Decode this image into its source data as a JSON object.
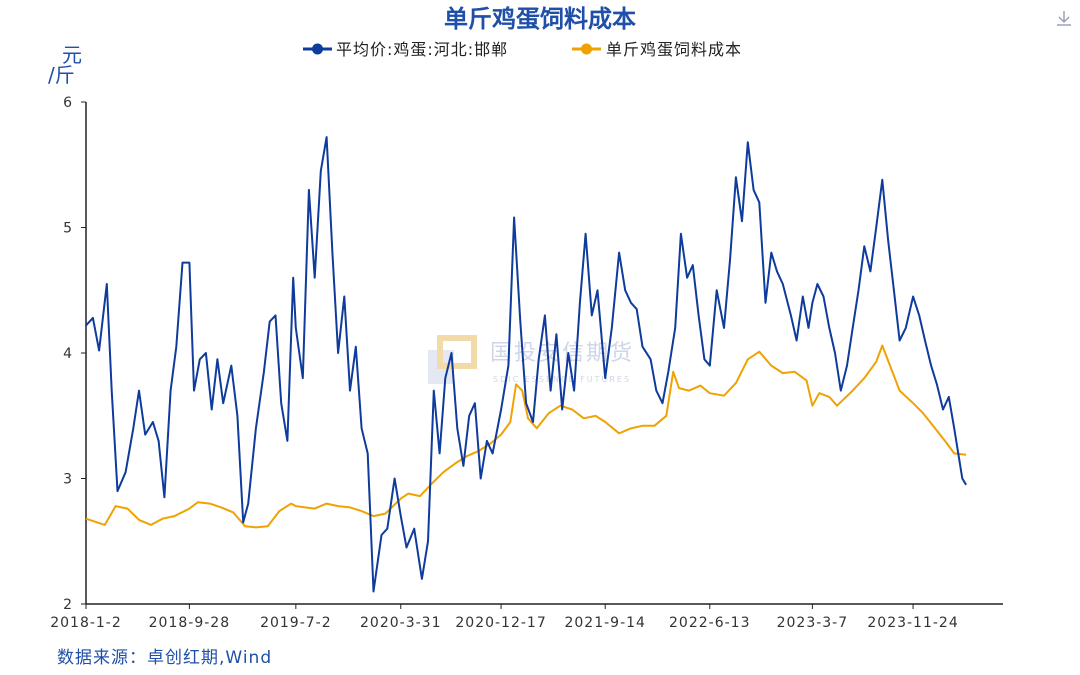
{
  "colors": {
    "series_egg": "#0e3b9c",
    "series_cost": "#f0a202",
    "title": "#1f4fa8",
    "axis": "#222222",
    "watermark": "#c7cfe6"
  },
  "toolbar": {
    "download_icon": "download-icon"
  },
  "watermark": {
    "text": "国投安信期货",
    "subtext": "SDIC ESSENCE FUTURES"
  },
  "source": "数据来源：卓创红期,Wind",
  "chart_data": {
    "type": "line",
    "title": "单斤鸡蛋饲料成本",
    "ylabel_line1": "元",
    "ylabel_line2": "/斤",
    "ylim": [
      2,
      6
    ],
    "yticks": [
      2,
      3,
      4,
      5,
      6
    ],
    "xlim": [
      "2018-01-02",
      "2024-07-15"
    ],
    "xticks": [
      "2018-1-2",
      "2018-9-28",
      "2019-7-2",
      "2020-3-31",
      "2020-12-17",
      "2021-9-14",
      "2022-6-13",
      "2023-3-7",
      "2023-11-24"
    ],
    "grid": false,
    "legend_position": "top",
    "series": [
      {
        "name": "平均价:鸡蛋:河北:邯郸",
        "points": [
          [
            "2018-01-02",
            4.22
          ],
          [
            "2018-01-20",
            4.28
          ],
          [
            "2018-02-05",
            4.02
          ],
          [
            "2018-02-25",
            4.55
          ],
          [
            "2018-03-10",
            3.7
          ],
          [
            "2018-03-25",
            2.9
          ],
          [
            "2018-04-15",
            3.05
          ],
          [
            "2018-05-05",
            3.4
          ],
          [
            "2018-05-20",
            3.7
          ],
          [
            "2018-06-05",
            3.35
          ],
          [
            "2018-06-25",
            3.45
          ],
          [
            "2018-07-10",
            3.3
          ],
          [
            "2018-07-25",
            2.85
          ],
          [
            "2018-08-10",
            3.7
          ],
          [
            "2018-08-25",
            4.05
          ],
          [
            "2018-09-10",
            4.72
          ],
          [
            "2018-09-28",
            4.72
          ],
          [
            "2018-10-10",
            3.7
          ],
          [
            "2018-10-25",
            3.95
          ],
          [
            "2018-11-10",
            4.0
          ],
          [
            "2018-11-25",
            3.55
          ],
          [
            "2018-12-10",
            3.95
          ],
          [
            "2018-12-25",
            3.6
          ],
          [
            "2019-01-15",
            3.9
          ],
          [
            "2019-01-31",
            3.5
          ],
          [
            "2019-02-15",
            2.65
          ],
          [
            "2019-02-28",
            2.8
          ],
          [
            "2019-03-20",
            3.4
          ],
          [
            "2019-04-10",
            3.85
          ],
          [
            "2019-04-25",
            4.25
          ],
          [
            "2019-05-10",
            4.3
          ],
          [
            "2019-05-25",
            3.6
          ],
          [
            "2019-06-10",
            3.3
          ],
          [
            "2019-06-25",
            4.6
          ],
          [
            "2019-07-02",
            4.2
          ],
          [
            "2019-07-20",
            3.8
          ],
          [
            "2019-08-05",
            5.3
          ],
          [
            "2019-08-20",
            4.6
          ],
          [
            "2019-09-05",
            5.45
          ],
          [
            "2019-09-20",
            5.72
          ],
          [
            "2019-10-05",
            4.8
          ],
          [
            "2019-10-20",
            4.0
          ],
          [
            "2019-11-05",
            4.45
          ],
          [
            "2019-11-20",
            3.7
          ],
          [
            "2019-12-05",
            4.05
          ],
          [
            "2019-12-20",
            3.4
          ],
          [
            "2020-01-05",
            3.2
          ],
          [
            "2020-01-20",
            2.1
          ],
          [
            "2020-02-10",
            2.55
          ],
          [
            "2020-02-25",
            2.6
          ],
          [
            "2020-03-15",
            3.0
          ],
          [
            "2020-03-31",
            2.7
          ],
          [
            "2020-04-15",
            2.45
          ],
          [
            "2020-05-05",
            2.6
          ],
          [
            "2020-05-25",
            2.2
          ],
          [
            "2020-06-10",
            2.5
          ],
          [
            "2020-06-25",
            3.7
          ],
          [
            "2020-07-10",
            3.2
          ],
          [
            "2020-07-25",
            3.8
          ],
          [
            "2020-08-10",
            4.0
          ],
          [
            "2020-08-25",
            3.4
          ],
          [
            "2020-09-10",
            3.1
          ],
          [
            "2020-09-25",
            3.5
          ],
          [
            "2020-10-10",
            3.6
          ],
          [
            "2020-10-25",
            3.0
          ],
          [
            "2020-11-10",
            3.3
          ],
          [
            "2020-11-25",
            3.2
          ],
          [
            "2020-12-17",
            3.55
          ],
          [
            "2021-01-05",
            3.9
          ],
          [
            "2021-01-20",
            5.08
          ],
          [
            "2021-02-05",
            4.25
          ],
          [
            "2021-02-20",
            3.6
          ],
          [
            "2021-03-10",
            3.45
          ],
          [
            "2021-03-25",
            3.95
          ],
          [
            "2021-04-10",
            4.3
          ],
          [
            "2021-04-25",
            3.7
          ],
          [
            "2021-05-10",
            4.15
          ],
          [
            "2021-05-25",
            3.55
          ],
          [
            "2021-06-10",
            4.0
          ],
          [
            "2021-06-25",
            3.7
          ],
          [
            "2021-07-10",
            4.4
          ],
          [
            "2021-07-25",
            4.95
          ],
          [
            "2021-08-10",
            4.3
          ],
          [
            "2021-08-25",
            4.5
          ],
          [
            "2021-09-14",
            3.8
          ],
          [
            "2021-10-01",
            4.2
          ],
          [
            "2021-10-20",
            4.8
          ],
          [
            "2021-11-05",
            4.5
          ],
          [
            "2021-11-20",
            4.4
          ],
          [
            "2021-12-05",
            4.35
          ],
          [
            "2021-12-20",
            4.05
          ],
          [
            "2022-01-10",
            3.95
          ],
          [
            "2022-01-25",
            3.7
          ],
          [
            "2022-02-10",
            3.6
          ],
          [
            "2022-02-25",
            3.85
          ],
          [
            "2022-03-15",
            4.2
          ],
          [
            "2022-03-30",
            4.95
          ],
          [
            "2022-04-15",
            4.6
          ],
          [
            "2022-04-30",
            4.7
          ],
          [
            "2022-05-15",
            4.3
          ],
          [
            "2022-05-30",
            3.95
          ],
          [
            "2022-06-13",
            3.9
          ],
          [
            "2022-07-01",
            4.5
          ],
          [
            "2022-07-20",
            4.2
          ],
          [
            "2022-08-05",
            4.75
          ],
          [
            "2022-08-20",
            5.4
          ],
          [
            "2022-09-05",
            5.05
          ],
          [
            "2022-09-20",
            5.68
          ],
          [
            "2022-10-05",
            5.3
          ],
          [
            "2022-10-20",
            5.2
          ],
          [
            "2022-11-05",
            4.4
          ],
          [
            "2022-11-20",
            4.8
          ],
          [
            "2022-12-05",
            4.65
          ],
          [
            "2022-12-20",
            4.55
          ],
          [
            "2023-01-10",
            4.3
          ],
          [
            "2023-01-25",
            4.1
          ],
          [
            "2023-02-10",
            4.45
          ],
          [
            "2023-02-25",
            4.2
          ],
          [
            "2023-03-07",
            4.4
          ],
          [
            "2023-03-20",
            4.55
          ],
          [
            "2023-04-05",
            4.45
          ],
          [
            "2023-04-20",
            4.2
          ],
          [
            "2023-05-05",
            4.0
          ],
          [
            "2023-05-20",
            3.7
          ],
          [
            "2023-06-05",
            3.9
          ],
          [
            "2023-06-20",
            4.2
          ],
          [
            "2023-07-05",
            4.5
          ],
          [
            "2023-07-20",
            4.85
          ],
          [
            "2023-08-05",
            4.65
          ],
          [
            "2023-08-20",
            5.0
          ],
          [
            "2023-09-05",
            5.38
          ],
          [
            "2023-09-20",
            4.9
          ],
          [
            "2023-10-05",
            4.5
          ],
          [
            "2023-10-20",
            4.1
          ],
          [
            "2023-11-05",
            4.2
          ],
          [
            "2023-11-24",
            4.45
          ],
          [
            "2023-12-10",
            4.3
          ],
          [
            "2023-12-25",
            4.1
          ],
          [
            "2024-01-10",
            3.9
          ],
          [
            "2024-01-25",
            3.75
          ],
          [
            "2024-02-10",
            3.55
          ],
          [
            "2024-02-25",
            3.65
          ],
          [
            "2024-03-10",
            3.4
          ],
          [
            "2024-03-31",
            3.0
          ],
          [
            "2024-04-10",
            2.95
          ]
        ]
      },
      {
        "name": "单斤鸡蛋饲料成本",
        "points": [
          [
            "2018-01-02",
            2.68
          ],
          [
            "2018-02-20",
            2.63
          ],
          [
            "2018-03-20",
            2.78
          ],
          [
            "2018-04-20",
            2.76
          ],
          [
            "2018-05-20",
            2.67
          ],
          [
            "2018-06-20",
            2.63
          ],
          [
            "2018-07-20",
            2.68
          ],
          [
            "2018-08-20",
            2.7
          ],
          [
            "2018-09-28",
            2.76
          ],
          [
            "2018-10-20",
            2.81
          ],
          [
            "2018-11-20",
            2.8
          ],
          [
            "2018-12-20",
            2.77
          ],
          [
            "2019-01-20",
            2.73
          ],
          [
            "2019-02-20",
            2.62
          ],
          [
            "2019-03-20",
            2.61
          ],
          [
            "2019-04-20",
            2.62
          ],
          [
            "2019-05-20",
            2.74
          ],
          [
            "2019-06-20",
            2.8
          ],
          [
            "2019-07-02",
            2.78
          ],
          [
            "2019-08-20",
            2.76
          ],
          [
            "2019-09-20",
            2.8
          ],
          [
            "2019-10-20",
            2.78
          ],
          [
            "2019-11-20",
            2.77
          ],
          [
            "2019-12-20",
            2.74
          ],
          [
            "2020-01-20",
            2.7
          ],
          [
            "2020-02-20",
            2.72
          ],
          [
            "2020-03-31",
            2.84
          ],
          [
            "2020-04-20",
            2.88
          ],
          [
            "2020-05-20",
            2.86
          ],
          [
            "2020-06-20",
            2.96
          ],
          [
            "2020-07-20",
            3.05
          ],
          [
            "2020-08-20",
            3.12
          ],
          [
            "2020-09-20",
            3.18
          ],
          [
            "2020-10-20",
            3.22
          ],
          [
            "2020-11-20",
            3.28
          ],
          [
            "2020-12-17",
            3.35
          ],
          [
            "2021-01-10",
            3.45
          ],
          [
            "2021-01-25",
            3.75
          ],
          [
            "2021-02-10",
            3.7
          ],
          [
            "2021-02-25",
            3.48
          ],
          [
            "2021-03-20",
            3.4
          ],
          [
            "2021-04-20",
            3.52
          ],
          [
            "2021-05-20",
            3.58
          ],
          [
            "2021-06-20",
            3.55
          ],
          [
            "2021-07-20",
            3.48
          ],
          [
            "2021-08-20",
            3.5
          ],
          [
            "2021-09-14",
            3.45
          ],
          [
            "2021-10-20",
            3.36
          ],
          [
            "2021-11-20",
            3.4
          ],
          [
            "2021-12-20",
            3.42
          ],
          [
            "2022-01-20",
            3.42
          ],
          [
            "2022-02-20",
            3.5
          ],
          [
            "2022-03-10",
            3.85
          ],
          [
            "2022-03-25",
            3.72
          ],
          [
            "2022-04-20",
            3.7
          ],
          [
            "2022-05-20",
            3.74
          ],
          [
            "2022-06-13",
            3.68
          ],
          [
            "2022-07-20",
            3.66
          ],
          [
            "2022-08-20",
            3.76
          ],
          [
            "2022-09-20",
            3.95
          ],
          [
            "2022-10-20",
            4.01
          ],
          [
            "2022-11-20",
            3.9
          ],
          [
            "2022-12-20",
            3.84
          ],
          [
            "2023-01-20",
            3.85
          ],
          [
            "2023-02-20",
            3.78
          ],
          [
            "2023-03-07",
            3.58
          ],
          [
            "2023-03-25",
            3.68
          ],
          [
            "2023-04-20",
            3.65
          ],
          [
            "2023-05-10",
            3.58
          ],
          [
            "2023-06-20",
            3.7
          ],
          [
            "2023-07-20",
            3.8
          ],
          [
            "2023-08-20",
            3.93
          ],
          [
            "2023-09-05",
            4.06
          ],
          [
            "2023-09-25",
            3.9
          ],
          [
            "2023-10-20",
            3.7
          ],
          [
            "2023-11-24",
            3.6
          ],
          [
            "2023-12-20",
            3.52
          ],
          [
            "2024-01-20",
            3.4
          ],
          [
            "2024-02-20",
            3.28
          ],
          [
            "2024-03-10",
            3.2
          ],
          [
            "2024-04-10",
            3.19
          ]
        ]
      }
    ]
  }
}
